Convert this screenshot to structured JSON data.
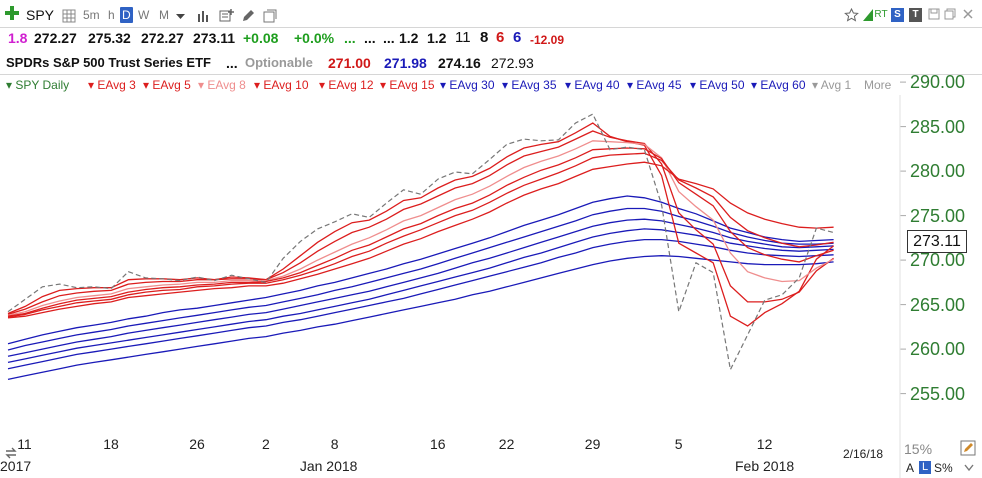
{
  "toolbar": {
    "symbol": "SPY",
    "timeframes": [
      "5m",
      "h",
      "D",
      "W",
      "M"
    ],
    "selected_timeframe": "D",
    "icons": [
      "add-symbol-icon",
      "grid-icon",
      "bar-chart-icon",
      "add-study-icon",
      "pencil-icon",
      "note-icon",
      "star-icon",
      "alert-icon",
      "rt-icon",
      "s-dropdown-icon",
      "t-dropdown-icon",
      "save-icon",
      "restore-icon",
      "close-icon"
    ],
    "right_labels": {
      "rt": "RT",
      "s": "S",
      "t": "T"
    }
  },
  "quote": {
    "lead": "1.8",
    "open": "272.27",
    "high": "275.32",
    "low": "272.27",
    "close": "273.11",
    "change": "+0.08",
    "change_pct": "+0.0%",
    "green_dots": "...",
    "dots1": "...",
    "dots2": "...",
    "v1": "1.2",
    "v2": "1.2",
    "v3": "11",
    "v4": "8",
    "v5": "6",
    "v6": "6",
    "v7": "-12.09"
  },
  "security": {
    "name": "SPDRs S&P 500 Trust Series ETF",
    "dots": "...",
    "optionable": "Optionable",
    "p1": "271.00",
    "p2": "271.98",
    "p3": "274.16",
    "p4": "272.93"
  },
  "colors": {
    "red": "#dc1e1e",
    "light_red": "#ef8e8e",
    "blue": "#1a1ab8",
    "green": "#2f7d32",
    "gray_dash": "#777777",
    "toolbar_blue": "#2f62c4"
  },
  "chart_data": {
    "type": "line",
    "title": "SPY Daily",
    "legend_items": [
      {
        "name": "SPY Daily",
        "color": "#2f7d32"
      },
      {
        "name": "EAvg 3",
        "color": "#dc1e1e"
      },
      {
        "name": "EAvg 5",
        "color": "#dc1e1e"
      },
      {
        "name": "EAvg 8",
        "color": "#ef8e8e"
      },
      {
        "name": "EAvg 10",
        "color": "#dc1e1e"
      },
      {
        "name": "EAvg 12",
        "color": "#dc1e1e"
      },
      {
        "name": "EAvg 15",
        "color": "#dc1e1e"
      },
      {
        "name": "EAvg 30",
        "color": "#1a1ab8"
      },
      {
        "name": "EAvg 35",
        "color": "#1a1ab8"
      },
      {
        "name": "EAvg 40",
        "color": "#1a1ab8"
      },
      {
        "name": "EAvg 45",
        "color": "#1a1ab8"
      },
      {
        "name": "EAvg 50",
        "color": "#1a1ab8"
      },
      {
        "name": "EAvg 60",
        "color": "#1a1ab8"
      },
      {
        "name": "Avg 1",
        "color": "#999999"
      },
      {
        "name": "More",
        "color": "#999999"
      }
    ],
    "ylim": [
      253,
      291
    ],
    "yticks": [
      255.0,
      260.0,
      265.0,
      270.0,
      275.0,
      280.0,
      285.0,
      290.0
    ],
    "ytick_labels": [
      "255.00",
      "260.00",
      "265.00",
      "270.00",
      "275.00",
      "280.00",
      "285.00",
      "290.00"
    ],
    "last_price": "273.11",
    "x_tick_labels": [
      {
        "label": "11",
        "at": 1
      },
      {
        "label": "18",
        "at": 6
      },
      {
        "label": "26",
        "at": 11
      },
      {
        "label": "2",
        "at": 15
      },
      {
        "label": "8",
        "at": 19
      },
      {
        "label": "16",
        "at": 25
      },
      {
        "label": "22",
        "at": 29
      },
      {
        "label": "29",
        "at": 34
      },
      {
        "label": "5",
        "at": 39
      },
      {
        "label": "12",
        "at": 44
      }
    ],
    "x_month_labels": [
      {
        "label": "2017",
        "at": -0.4
      },
      {
        "label": "Jan 2018",
        "at": 17.2
      },
      {
        "label": "Feb 2018",
        "at": 42.5
      }
    ],
    "date_label": "2/16/18",
    "pct_label": "15%",
    "series": [
      {
        "name": "SPY",
        "style": "dashed",
        "color": "#777777",
        "start": 0,
        "values": [
          264.2,
          265.6,
          267.0,
          267.3,
          266.9,
          267.0,
          266.8,
          268.7,
          268.0,
          267.9,
          267.7,
          268.1,
          267.7,
          268.3,
          267.9,
          267.5,
          270.2,
          272.1,
          273.5,
          274.3,
          275.2,
          274.8,
          276.4,
          277.9,
          277.4,
          279.1,
          279.9,
          279.7,
          281.3,
          283.0,
          283.6,
          283.4,
          283.5,
          285.4,
          286.4,
          282.4,
          282.7,
          282.4,
          276.2,
          264.2,
          269.7,
          268.6,
          257.7,
          261.6,
          265.5,
          266.1,
          268.0,
          273.6,
          273.1
        ]
      },
      {
        "name": "EAvg 3",
        "color": "#dc1e1e",
        "start": 0,
        "values": [
          264.0,
          264.8,
          265.9,
          266.6,
          266.8,
          266.9,
          266.9,
          267.8,
          267.9,
          267.9,
          267.8,
          268.0,
          267.8,
          268.1,
          268.0,
          267.8,
          269.0,
          270.5,
          272.0,
          273.2,
          274.2,
          274.5,
          275.5,
          276.7,
          277.0,
          278.1,
          279.0,
          279.4,
          280.3,
          281.6,
          282.6,
          283.0,
          283.3,
          284.3,
          285.4,
          283.9,
          283.3,
          282.9,
          279.5,
          271.9,
          270.8,
          269.7,
          263.7,
          262.6,
          264.1,
          265.1,
          266.5,
          270.1,
          271.6
        ]
      },
      {
        "name": "EAvg 5",
        "color": "#dc1e1e",
        "start": 0,
        "values": [
          263.9,
          264.5,
          265.3,
          266.0,
          266.3,
          266.5,
          266.6,
          267.3,
          267.5,
          267.6,
          267.6,
          267.8,
          267.8,
          267.9,
          267.9,
          267.8,
          268.6,
          269.7,
          271.0,
          272.1,
          273.1,
          273.7,
          274.6,
          275.7,
          276.3,
          277.2,
          278.1,
          278.6,
          279.5,
          280.7,
          281.7,
          282.2,
          282.7,
          283.6,
          284.5,
          283.8,
          283.4,
          283.1,
          280.8,
          275.3,
          273.4,
          271.8,
          267.1,
          265.3,
          265.3,
          265.6,
          266.4,
          268.8,
          270.2
        ]
      },
      {
        "name": "EAvg 8",
        "color": "#ef8e8e",
        "start": 0,
        "values": [
          263.8,
          264.2,
          264.9,
          265.4,
          265.8,
          266.0,
          266.2,
          266.8,
          267.0,
          267.2,
          267.3,
          267.5,
          267.5,
          267.7,
          267.7,
          267.7,
          268.2,
          269.0,
          270.0,
          270.9,
          271.8,
          272.5,
          273.4,
          274.4,
          275.0,
          275.9,
          276.8,
          277.4,
          278.3,
          279.4,
          280.4,
          281.1,
          281.7,
          282.5,
          283.4,
          283.3,
          283.2,
          283.0,
          281.5,
          277.7,
          276.0,
          274.5,
          270.8,
          268.7,
          268.0,
          267.6,
          267.7,
          269.1,
          270.1
        ]
      },
      {
        "name": "EAvg 10",
        "color": "#dc1e1e",
        "start": 0,
        "values": [
          263.7,
          264.0,
          264.6,
          265.1,
          265.5,
          265.7,
          265.9,
          266.4,
          266.7,
          266.9,
          267.0,
          267.2,
          267.3,
          267.5,
          267.5,
          267.6,
          268.0,
          268.6,
          269.4,
          270.2,
          271.1,
          271.7,
          272.6,
          273.5,
          274.1,
          275.0,
          275.8,
          276.4,
          277.3,
          278.4,
          279.3,
          280.1,
          280.7,
          281.5,
          282.4,
          282.5,
          282.6,
          282.5,
          281.4,
          278.7,
          277.4,
          276.1,
          273.2,
          271.4,
          270.6,
          270.1,
          269.8,
          270.5,
          271.1
        ]
      },
      {
        "name": "EAvg 12",
        "color": "#dc1e1e",
        "start": 0,
        "values": [
          263.6,
          263.9,
          264.4,
          264.8,
          265.2,
          265.4,
          265.6,
          266.1,
          266.4,
          266.6,
          266.7,
          267.0,
          267.1,
          267.3,
          267.4,
          267.4,
          267.8,
          268.3,
          268.9,
          269.6,
          270.4,
          271.0,
          271.9,
          272.7,
          273.4,
          274.2,
          275.0,
          275.6,
          276.5,
          277.5,
          278.4,
          279.1,
          279.8,
          280.6,
          281.5,
          281.8,
          281.9,
          282.0,
          281.2,
          279.0,
          278.1,
          277.1,
          274.8,
          273.3,
          272.5,
          271.9,
          271.5,
          271.7,
          272.0
        ]
      },
      {
        "name": "EAvg 15",
        "color": "#dc1e1e",
        "start": 0,
        "values": [
          263.5,
          263.7,
          264.1,
          264.5,
          264.8,
          265.1,
          265.3,
          265.8,
          266.0,
          266.2,
          266.4,
          266.6,
          266.8,
          266.9,
          267.1,
          267.1,
          267.4,
          267.9,
          268.4,
          269.0,
          269.6,
          270.2,
          271.0,
          271.8,
          272.4,
          273.2,
          273.9,
          274.6,
          275.4,
          276.4,
          277.3,
          278.0,
          278.6,
          279.4,
          280.2,
          280.5,
          280.8,
          281.0,
          280.6,
          279.1,
          278.6,
          278.0,
          276.4,
          275.3,
          274.6,
          274.1,
          273.7,
          273.6,
          273.7
        ]
      },
      {
        "name": "EAvg 30",
        "color": "#1a1ab8",
        "start": 0,
        "values": [
          260.6,
          261.1,
          261.6,
          262.0,
          262.4,
          262.7,
          263.0,
          263.4,
          263.7,
          264.1,
          264.4,
          264.6,
          264.9,
          265.2,
          265.5,
          265.8,
          266.2,
          266.6,
          267.1,
          267.5,
          268.0,
          268.5,
          269.0,
          269.6,
          270.1,
          270.7,
          271.3,
          271.9,
          272.5,
          273.2,
          273.9,
          274.5,
          275.1,
          275.8,
          276.5,
          276.9,
          277.2,
          277.0,
          276.5,
          275.8,
          275.2,
          274.4,
          273.6,
          273.1,
          272.6,
          272.3,
          272.1,
          272.2,
          272.3
        ]
      },
      {
        "name": "EAvg 35",
        "color": "#1a1ab8",
        "start": 0,
        "values": [
          259.9,
          260.4,
          260.8,
          261.2,
          261.6,
          261.9,
          262.2,
          262.6,
          262.9,
          263.2,
          263.5,
          263.8,
          264.1,
          264.4,
          264.7,
          264.9,
          265.3,
          265.7,
          266.1,
          266.6,
          267.0,
          267.5,
          268.0,
          268.5,
          269.0,
          269.6,
          270.2,
          270.8,
          271.4,
          272.0,
          272.6,
          273.2,
          273.8,
          274.4,
          275.1,
          275.5,
          275.8,
          275.8,
          275.5,
          274.9,
          274.4,
          273.8,
          273.1,
          272.6,
          272.2,
          271.9,
          271.8,
          271.8,
          271.9
        ]
      },
      {
        "name": "EAvg 40",
        "color": "#1a1ab8",
        "start": 0,
        "values": [
          259.2,
          259.6,
          260.0,
          260.4,
          260.8,
          261.1,
          261.4,
          261.8,
          262.1,
          262.4,
          262.7,
          263.0,
          263.3,
          263.6,
          263.9,
          264.1,
          264.5,
          264.9,
          265.3,
          265.7,
          266.1,
          266.5,
          267.0,
          267.5,
          268.0,
          268.5,
          269.1,
          269.7,
          270.2,
          270.8,
          271.4,
          272.0,
          272.6,
          273.2,
          273.8,
          274.2,
          274.5,
          274.6,
          274.4,
          274.0,
          273.6,
          273.1,
          272.5,
          272.1,
          271.8,
          271.5,
          271.4,
          271.5,
          271.6
        ]
      },
      {
        "name": "EAvg 45",
        "color": "#1a1ab8",
        "start": 0,
        "values": [
          258.5,
          258.9,
          259.3,
          259.7,
          260.1,
          260.4,
          260.7,
          261.0,
          261.3,
          261.6,
          261.9,
          262.2,
          262.5,
          262.8,
          263.1,
          263.3,
          263.7,
          264.0,
          264.4,
          264.8,
          265.2,
          265.6,
          266.1,
          266.6,
          267.1,
          267.6,
          268.1,
          268.6,
          269.1,
          269.7,
          270.3,
          270.8,
          271.4,
          272.0,
          272.6,
          273.0,
          273.3,
          273.5,
          273.4,
          273.1,
          272.8,
          272.4,
          271.9,
          271.6,
          271.3,
          271.1,
          271.0,
          271.1,
          271.2
        ]
      },
      {
        "name": "EAvg 50",
        "color": "#1a1ab8",
        "start": 0,
        "values": [
          257.8,
          258.2,
          258.6,
          259.0,
          259.4,
          259.7,
          260.0,
          260.3,
          260.6,
          260.9,
          261.2,
          261.5,
          261.8,
          262.1,
          262.4,
          262.6,
          263.0,
          263.3,
          263.7,
          264.1,
          264.5,
          264.9,
          265.3,
          265.7,
          266.2,
          266.7,
          267.2,
          267.7,
          268.2,
          268.7,
          269.2,
          269.7,
          270.3,
          270.8,
          271.4,
          271.8,
          272.1,
          272.3,
          272.3,
          272.1,
          271.8,
          271.5,
          271.1,
          270.8,
          270.6,
          270.5,
          270.4,
          270.5,
          270.6
        ]
      },
      {
        "name": "EAvg 60",
        "color": "#1a1ab8",
        "start": 0,
        "values": [
          256.6,
          257.0,
          257.4,
          257.8,
          258.2,
          258.5,
          258.8,
          259.1,
          259.4,
          259.7,
          260.0,
          260.3,
          260.6,
          260.9,
          261.2,
          261.4,
          261.8,
          262.1,
          262.5,
          262.8,
          263.2,
          263.6,
          264.0,
          264.4,
          264.8,
          265.2,
          265.6,
          266.1,
          266.5,
          267.0,
          267.5,
          268.0,
          268.5,
          269.0,
          269.5,
          269.9,
          270.2,
          270.4,
          270.5,
          270.4,
          270.2,
          270.0,
          269.8,
          269.6,
          269.5,
          269.5,
          269.5,
          269.6,
          269.8
        ]
      }
    ]
  }
}
